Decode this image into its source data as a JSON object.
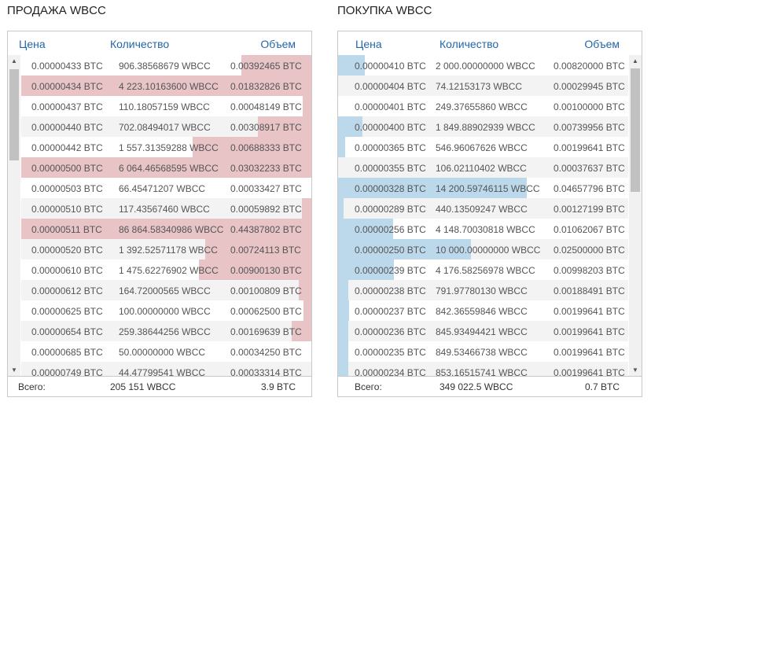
{
  "sell": {
    "title": "ПРОДАЖА WBCC",
    "columns": [
      "Цена",
      "Количество",
      "Объем"
    ],
    "rows": [
      [
        "0.00000433 BTC",
        "906.38568679 WBCC",
        "0.00392465 BTC"
      ],
      [
        "0.00000434 BTC",
        "4 223.10163600 WBCC",
        "0.01832826 BTC"
      ],
      [
        "0.00000437 BTC",
        "110.18057159 WBCC",
        "0.00048149 BTC"
      ],
      [
        "0.00000440 BTC",
        "702.08494017 WBCC",
        "0.00308917 BTC"
      ],
      [
        "0.00000442 BTC",
        "1 557.31359288 WBCC",
        "0.00688333 BTC"
      ],
      [
        "0.00000500 BTC",
        "6 064.46568595 WBCC",
        "0.03032233 BTC"
      ],
      [
        "0.00000503 BTC",
        "66.45471207 WBCC",
        "0.00033427 BTC"
      ],
      [
        "0.00000510 BTC",
        "117.43567460 WBCC",
        "0.00059892 BTC"
      ],
      [
        "0.00000511 BTC",
        "86 864.58340986 WBCC",
        "0.44387802 BTC"
      ],
      [
        "0.00000520 BTC",
        "1 392.52571178 WBCC",
        "0.00724113 BTC"
      ],
      [
        "0.00000610 BTC",
        "1 475.62276902 WBCC",
        "0.00900130 BTC"
      ],
      [
        "0.00000612 BTC",
        "164.72000565 WBCC",
        "0.00100809 BTC"
      ],
      [
        "0.00000625 BTC",
        "100.00000000 WBCC",
        "0.00062500 BTC"
      ],
      [
        "0.00000654 BTC",
        "259.38644256 WBCC",
        "0.00169639 BTC"
      ],
      [
        "0.00000685 BTC",
        "50.00000000 WBCC",
        "0.00034250 BTC"
      ],
      [
        "0.00000749 BTC",
        "44.47799541 WBCC",
        "0.00033314 BTC"
      ]
    ],
    "total": {
      "label": "Всего:",
      "amount": "205 151 WBCC",
      "volume": "3.9 BTC"
    }
  },
  "buy": {
    "title": "ПОКУПКА WBCC",
    "columns": [
      "Цена",
      "Количество",
      "Объем"
    ],
    "rows": [
      [
        "0.00000410 BTC",
        "2 000.00000000 WBCC",
        "0.00820000 BTC"
      ],
      [
        "0.00000404 BTC",
        "74.12153173 WBCC",
        "0.00029945 BTC"
      ],
      [
        "0.00000401 BTC",
        "249.37655860 WBCC",
        "0.00100000 BTC"
      ],
      [
        "0.00000400 BTC",
        "1 849.88902939 WBCC",
        "0.00739956 BTC"
      ],
      [
        "0.00000365 BTC",
        "546.96067626 WBCC",
        "0.00199641 BTC"
      ],
      [
        "0.00000355 BTC",
        "106.02110402 WBCC",
        "0.00037637 BTC"
      ],
      [
        "0.00000328 BTC",
        "14 200.59746115 WBCC",
        "0.04657796 BTC"
      ],
      [
        "0.00000289 BTC",
        "440.13509247 WBCC",
        "0.00127199 BTC"
      ],
      [
        "0.00000256 BTC",
        "4 148.70030818 WBCC",
        "0.01062067 BTC"
      ],
      [
        "0.00000250 BTC",
        "10 000.00000000 WBCC",
        "0.02500000 BTC"
      ],
      [
        "0.00000239 BTC",
        "4 176.58256978 WBCC",
        "0.00998203 BTC"
      ],
      [
        "0.00000238 BTC",
        "791.97780130 WBCC",
        "0.00188491 BTC"
      ],
      [
        "0.00000237 BTC",
        "842.36559846 WBCC",
        "0.00199641 BTC"
      ],
      [
        "0.00000236 BTC",
        "845.93494421 WBCC",
        "0.00199641 BTC"
      ],
      [
        "0.00000235 BTC",
        "849.53466738 WBCC",
        "0.00199641 BTC"
      ],
      [
        "0.00000234 BTC",
        "853.16515741 WBCC",
        "0.00199641 BTC"
      ]
    ],
    "total": {
      "label": "Всего:",
      "amount": "349 022.5 WBCC",
      "volume": "0.7 BTC"
    }
  }
}
